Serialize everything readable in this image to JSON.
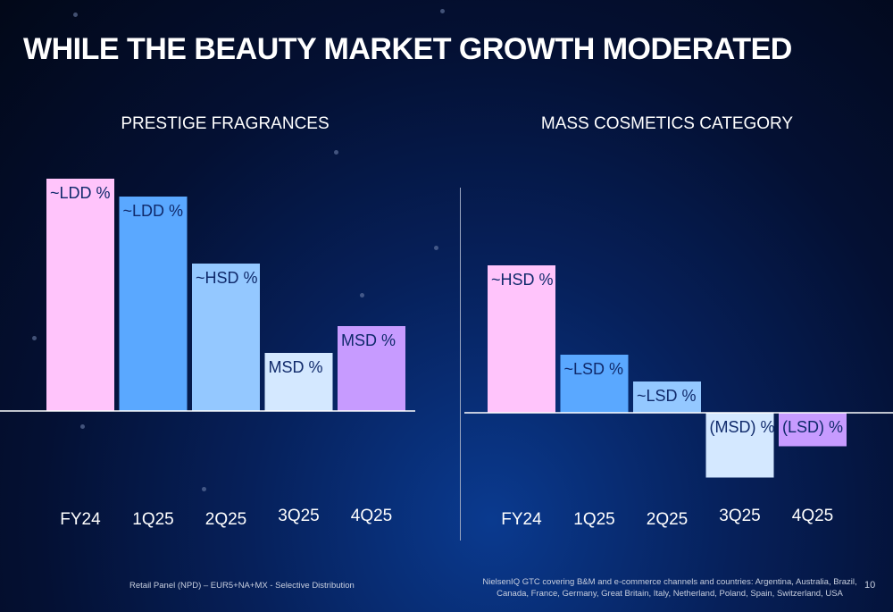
{
  "title": "WHILE THE BEAUTY MARKET GROWTH MODERATED",
  "colors": {
    "fy24": "#ffc4fb",
    "q1": "#5aa8ff",
    "q2": "#94c8ff",
    "q3": "#d4e8ff",
    "q4": "#c79bff",
    "bar_label": "#102a6b",
    "axis": "#ffffff",
    "tick_label": "#ffffff"
  },
  "chart_data": [
    {
      "type": "bar",
      "title": "PRESTIGE FRAGRANCES",
      "categories": [
        "FY24",
        "1Q25",
        "2Q25",
        "3Q25",
        "4Q25"
      ],
      "values": [
        5.2,
        4.8,
        3.3,
        1.3,
        1.9
      ],
      "data_labels": [
        "~LDD %",
        "~LDD %",
        "~HSD %",
        "MSD %",
        "MSD %"
      ],
      "value_note": "no numeric axis; heights estimated",
      "ylim": [
        0,
        5.5
      ],
      "grid": false,
      "legend": "none"
    },
    {
      "type": "bar",
      "title": "MASS COSMETICS CATEGORY",
      "categories": [
        "FY24",
        "1Q25",
        "2Q25",
        "3Q25",
        "4Q25"
      ],
      "values": [
        3.3,
        1.3,
        0.7,
        -1.45,
        -0.75
      ],
      "data_labels": [
        "~HSD %",
        "~LSD %",
        "~LSD %",
        "(MSD) %",
        "(LSD) %"
      ],
      "value_note": "no numeric axis; heights estimated",
      "ylim": [
        -1.6,
        5.5
      ],
      "grid": false,
      "legend": "none"
    }
  ],
  "footer": {
    "left": "Retail Panel (NPD) – EUR5+NA+MX - Selective Distribution",
    "right": "NielsenIQ GTC covering B&M and e-commerce channels and countries: Argentina, Australia, Brazil, Canada, France, Germany, Great Britain, Italy, Netherland, Poland, Spain, Switzerland, USA",
    "page_number": "10"
  }
}
